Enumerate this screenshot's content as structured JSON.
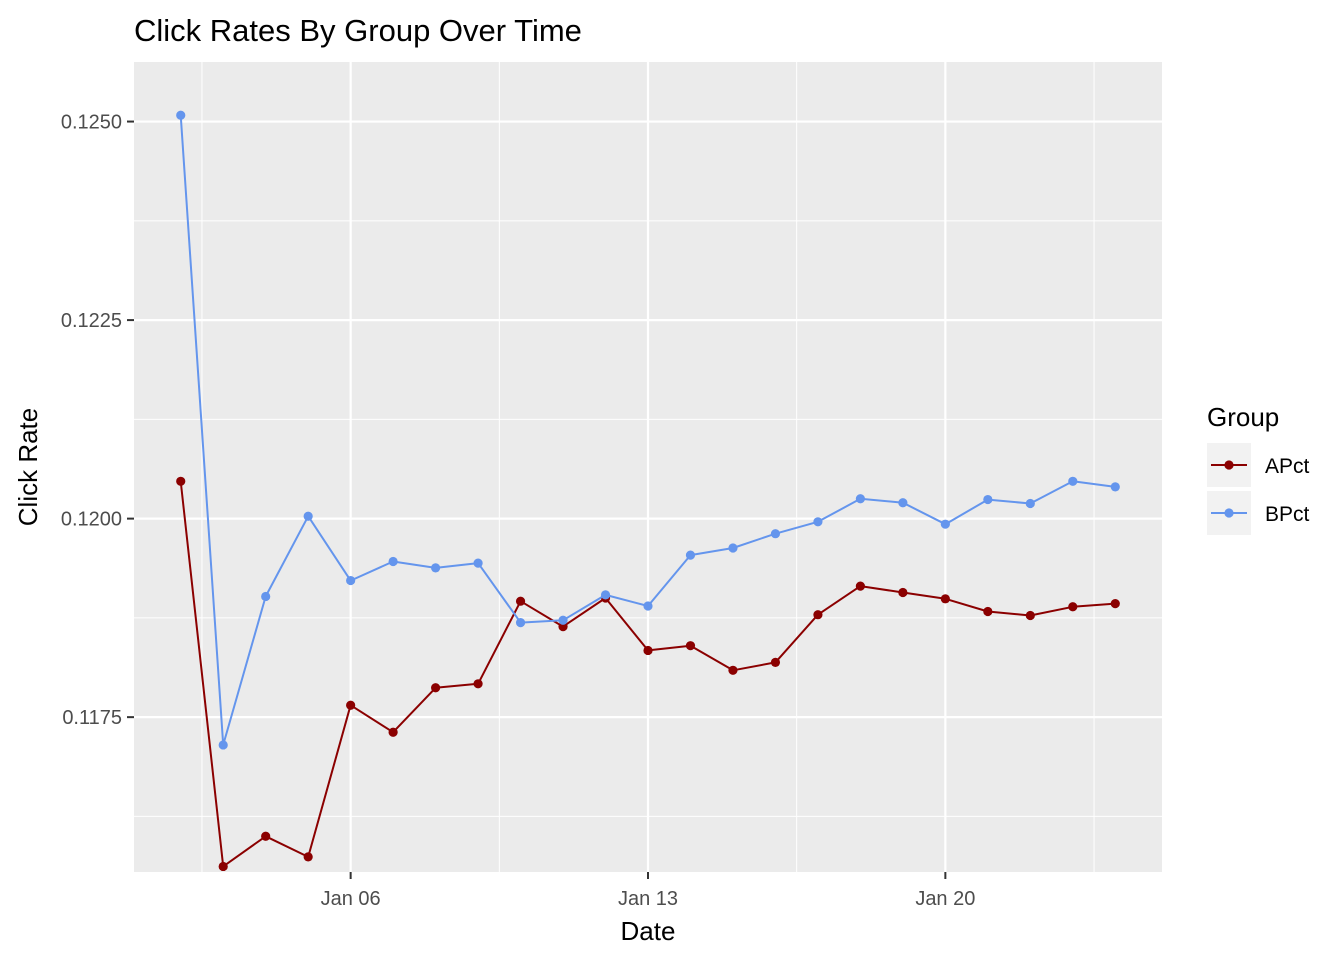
{
  "chart_data": {
    "type": "line",
    "title": "Click Rates By Group Over Time",
    "xlabel": "Date",
    "ylabel": "Click Rate",
    "x_tick_labels": [
      "Jan 06",
      "Jan 13",
      "Jan 20"
    ],
    "y_tick_labels": [
      "0.1175",
      "0.1200",
      "0.1225",
      "0.1250"
    ],
    "y_ticks": [
      0.1175,
      0.12,
      0.1225,
      0.125
    ],
    "x": [
      "2020-01-02",
      "2020-01-03",
      "2020-01-04",
      "2020-01-05",
      "2020-01-06",
      "2020-01-07",
      "2020-01-08",
      "2020-01-09",
      "2020-01-10",
      "2020-01-11",
      "2020-01-12",
      "2020-01-13",
      "2020-01-14",
      "2020-01-15",
      "2020-01-16",
      "2020-01-17",
      "2020-01-18",
      "2020-01-19",
      "2020-01-20",
      "2020-01-21",
      "2020-01-22",
      "2020-01-23",
      "2020-01-24"
    ],
    "ylim": [
      0.11555,
      0.12575
    ],
    "grid": true,
    "legend": {
      "title": "Group",
      "placement": "right"
    },
    "series": [
      {
        "name": "APct",
        "color": "#8B0000",
        "values": [
          0.12047,
          0.11562,
          0.116,
          0.11574,
          0.11765,
          0.11731,
          0.11787,
          0.11792,
          0.11896,
          0.11864,
          0.119,
          0.11834,
          0.1184,
          0.11809,
          0.11819,
          0.11879,
          0.11915,
          0.11907,
          0.11899,
          0.11883,
          0.11878,
          0.11889,
          0.11893
        ]
      },
      {
        "name": "BPct",
        "color": "#6495ED",
        "values": [
          0.12508,
          0.11715,
          0.11902,
          0.12003,
          0.11922,
          0.11946,
          0.11938,
          0.11944,
          0.11869,
          0.11872,
          0.11904,
          0.1189,
          0.11954,
          0.11963,
          0.11981,
          0.11996,
          0.12025,
          0.1202,
          0.11993,
          0.12024,
          0.12019,
          0.12047,
          0.1204
        ]
      }
    ]
  }
}
